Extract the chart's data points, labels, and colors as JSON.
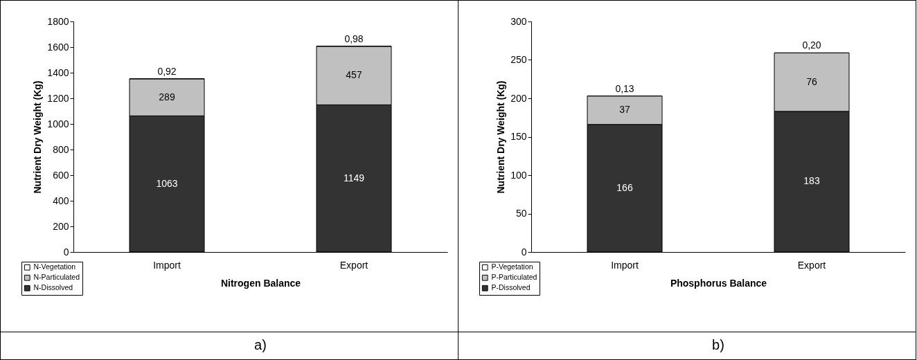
{
  "chart_data": [
    {
      "type": "bar",
      "title": "a)",
      "xlabel": "Nitrogen Balance",
      "ylabel": "Nutrient Dry Weight (Kg)",
      "categories": [
        "Import",
        "Export"
      ],
      "stacked": true,
      "ylim": [
        0,
        1800
      ],
      "yticks": [
        0,
        200,
        400,
        600,
        800,
        1000,
        1200,
        1400,
        1600,
        1800
      ],
      "legend": "bottom left",
      "series": [
        {
          "name": "N-Dissolved",
          "color": "#333333",
          "values": [
            1063,
            1149
          ],
          "value_labels": [
            "1063",
            "1149"
          ]
        },
        {
          "name": "N-Particulated",
          "color": "#c0c0c0",
          "values": [
            289,
            457
          ],
          "value_labels": [
            "289",
            "457"
          ]
        },
        {
          "name": "N-Vegetation",
          "color": "#ffffff",
          "values": [
            0.92,
            0.98
          ],
          "value_labels": [
            "0,92",
            "0,98"
          ]
        }
      ]
    },
    {
      "type": "bar",
      "title": "b)",
      "xlabel": "Phosphorus Balance",
      "ylabel": "Nutrient Dry Weight (Kg)",
      "categories": [
        "Import",
        "Export"
      ],
      "stacked": true,
      "ylim": [
        0,
        300
      ],
      "yticks": [
        0,
        50,
        100,
        150,
        200,
        250,
        300
      ],
      "legend": "bottom left",
      "series": [
        {
          "name": "P-Dissolved",
          "color": "#333333",
          "values": [
            166,
            183
          ],
          "value_labels": [
            "166",
            "183"
          ]
        },
        {
          "name": "P-Particulated",
          "color": "#c0c0c0",
          "values": [
            37,
            76
          ],
          "value_labels": [
            "37",
            "76"
          ]
        },
        {
          "name": "P-Vegetation",
          "color": "#ffffff",
          "values": [
            0.13,
            0.2
          ],
          "value_labels": [
            "0,13",
            "0,20"
          ]
        }
      ]
    }
  ]
}
